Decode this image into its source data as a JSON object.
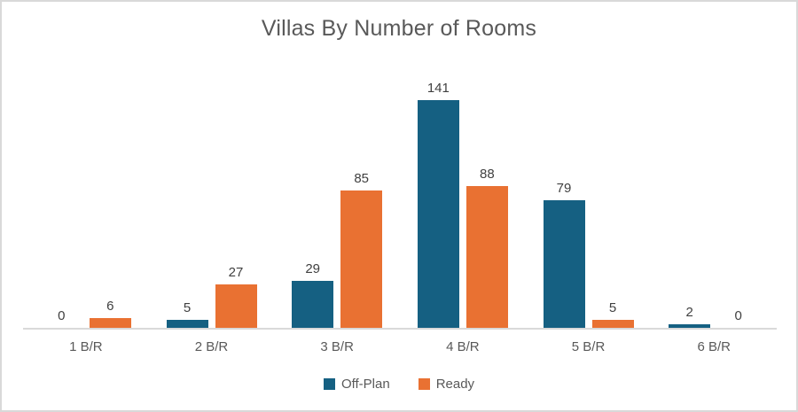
{
  "chart": {
    "background": "#FFFFFF",
    "border_color": "#D9D9D9",
    "axis_line_color": "#D9D9D9",
    "title_color": "#595959",
    "label_color": "#404040"
  },
  "chart_data": {
    "type": "bar",
    "title": "Villas By Number of Rooms",
    "categories": [
      "1 B/R",
      "2 B/R",
      "3 B/R",
      "4 B/R",
      "5 B/R",
      "6 B/R"
    ],
    "series": [
      {
        "name": "Off-Plan",
        "color": "#156082",
        "values": [
          0,
          5,
          29,
          141,
          79,
          2
        ]
      },
      {
        "name": "Ready",
        "color": "#E97132",
        "values": [
          6,
          27,
          85,
          88,
          5,
          0
        ]
      }
    ],
    "xlabel": "",
    "ylabel": "",
    "y_axis_visible": false,
    "grid": false,
    "data_labels": true,
    "legend_position": "bottom"
  }
}
